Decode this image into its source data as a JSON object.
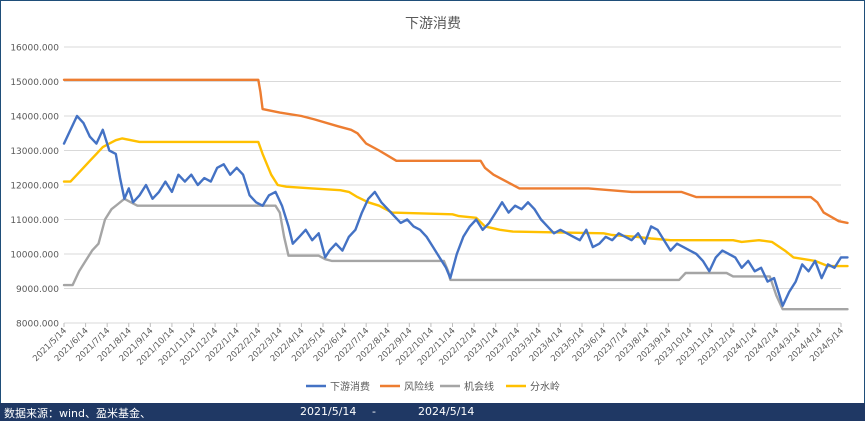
{
  "chart_data": {
    "type": "line",
    "title": "下游消费",
    "ylim": [
      8000,
      16000
    ],
    "yticks": [
      "8000.000",
      "9000.000",
      "10000.000",
      "11000.000",
      "12000.000",
      "13000.000",
      "14000.000",
      "15000.000",
      "16000.000"
    ],
    "xticks": [
      "2021/5/14",
      "2021/6/14",
      "2021/7/14",
      "2021/8/14",
      "2021/9/14",
      "2021/10/14",
      "2021/11/14",
      "2021/12/14",
      "2022/1/14",
      "2022/2/14",
      "2022/3/14",
      "2022/4/14",
      "2022/5/14",
      "2022/6/14",
      "2022/7/14",
      "2022/8/14",
      "2022/9/14",
      "2022/10/14",
      "2022/11/14",
      "2022/12/14",
      "2023/1/14",
      "2023/2/14",
      "2023/3/14",
      "2023/4/14",
      "2023/5/14",
      "2023/6/14",
      "2023/7/14",
      "2023/8/14",
      "2023/9/14",
      "2023/10/14",
      "2023/11/14",
      "2023/12/14",
      "2024/1/14",
      "2024/2/14",
      "2024/3/14",
      "2024/4/14",
      "2024/5/14"
    ],
    "grid": true,
    "legend_position": "bottom",
    "series": [
      {
        "name": "下游消费",
        "color": "#4472c4",
        "points": [
          [
            0,
            13200
          ],
          [
            0.3,
            13600
          ],
          [
            0.6,
            14000
          ],
          [
            0.9,
            13800
          ],
          [
            1.2,
            13400
          ],
          [
            1.5,
            13200
          ],
          [
            1.8,
            13600
          ],
          [
            2.1,
            13000
          ],
          [
            2.4,
            12900
          ],
          [
            2.6,
            12200
          ],
          [
            2.8,
            11600
          ],
          [
            3.0,
            11900
          ],
          [
            3.2,
            11500
          ],
          [
            3.5,
            11700
          ],
          [
            3.8,
            12000
          ],
          [
            4.1,
            11600
          ],
          [
            4.4,
            11800
          ],
          [
            4.7,
            12100
          ],
          [
            5.0,
            11800
          ],
          [
            5.3,
            12300
          ],
          [
            5.6,
            12100
          ],
          [
            5.9,
            12300
          ],
          [
            6.2,
            12000
          ],
          [
            6.5,
            12200
          ],
          [
            6.8,
            12100
          ],
          [
            7.1,
            12500
          ],
          [
            7.4,
            12600
          ],
          [
            7.7,
            12300
          ],
          [
            8.0,
            12500
          ],
          [
            8.3,
            12300
          ],
          [
            8.6,
            11700
          ],
          [
            8.9,
            11500
          ],
          [
            9.2,
            11400
          ],
          [
            9.5,
            11700
          ],
          [
            9.8,
            11800
          ],
          [
            10.1,
            11400
          ],
          [
            10.4,
            10800
          ],
          [
            10.6,
            10300
          ],
          [
            10.9,
            10500
          ],
          [
            11.2,
            10700
          ],
          [
            11.5,
            10400
          ],
          [
            11.8,
            10600
          ],
          [
            12.1,
            9900
          ],
          [
            12.3,
            10100
          ],
          [
            12.6,
            10300
          ],
          [
            12.9,
            10100
          ],
          [
            13.2,
            10500
          ],
          [
            13.5,
            10700
          ],
          [
            13.8,
            11200
          ],
          [
            14.1,
            11600
          ],
          [
            14.4,
            11800
          ],
          [
            14.7,
            11500
          ],
          [
            15.0,
            11300
          ],
          [
            15.3,
            11100
          ],
          [
            15.6,
            10900
          ],
          [
            15.9,
            11000
          ],
          [
            16.2,
            10800
          ],
          [
            16.5,
            10700
          ],
          [
            16.8,
            10500
          ],
          [
            17.1,
            10200
          ],
          [
            17.4,
            9900
          ],
          [
            17.7,
            9600
          ],
          [
            17.9,
            9300
          ],
          [
            18.2,
            10000
          ],
          [
            18.5,
            10500
          ],
          [
            18.8,
            10800
          ],
          [
            19.1,
            11000
          ],
          [
            19.4,
            10700
          ],
          [
            19.7,
            10900
          ],
          [
            20.0,
            11200
          ],
          [
            20.3,
            11500
          ],
          [
            20.6,
            11200
          ],
          [
            20.9,
            11400
          ],
          [
            21.2,
            11300
          ],
          [
            21.5,
            11500
          ],
          [
            21.8,
            11300
          ],
          [
            22.1,
            11000
          ],
          [
            22.4,
            10800
          ],
          [
            22.7,
            10600
          ],
          [
            23.0,
            10700
          ],
          [
            23.3,
            10600
          ],
          [
            23.6,
            10500
          ],
          [
            23.9,
            10400
          ],
          [
            24.2,
            10700
          ],
          [
            24.5,
            10200
          ],
          [
            24.8,
            10300
          ],
          [
            25.1,
            10500
          ],
          [
            25.4,
            10400
          ],
          [
            25.7,
            10600
          ],
          [
            26.0,
            10500
          ],
          [
            26.3,
            10400
          ],
          [
            26.6,
            10600
          ],
          [
            26.9,
            10300
          ],
          [
            27.2,
            10800
          ],
          [
            27.5,
            10700
          ],
          [
            27.8,
            10400
          ],
          [
            28.1,
            10100
          ],
          [
            28.4,
            10300
          ],
          [
            28.7,
            10200
          ],
          [
            29.0,
            10100
          ],
          [
            29.3,
            10000
          ],
          [
            29.6,
            9800
          ],
          [
            29.9,
            9500
          ],
          [
            30.2,
            9900
          ],
          [
            30.5,
            10100
          ],
          [
            30.8,
            10000
          ],
          [
            31.1,
            9900
          ],
          [
            31.4,
            9600
          ],
          [
            31.7,
            9800
          ],
          [
            32.0,
            9500
          ],
          [
            32.3,
            9600
          ],
          [
            32.6,
            9200
          ],
          [
            32.9,
            9300
          ],
          [
            33.1,
            8900
          ],
          [
            33.3,
            8500
          ],
          [
            33.6,
            8900
          ],
          [
            33.9,
            9200
          ],
          [
            34.2,
            9700
          ],
          [
            34.5,
            9500
          ],
          [
            34.8,
            9800
          ],
          [
            35.1,
            9300
          ],
          [
            35.4,
            9700
          ],
          [
            35.7,
            9600
          ],
          [
            36.0,
            9900
          ],
          [
            36.3,
            9900
          ]
        ]
      },
      {
        "name": "风险线",
        "color": "#ed7d31",
        "points": [
          [
            0,
            15050
          ],
          [
            9.0,
            15050
          ],
          [
            9.1,
            14700
          ],
          [
            9.2,
            14200
          ],
          [
            10.0,
            14100
          ],
          [
            11.0,
            14000
          ],
          [
            11.6,
            13900
          ],
          [
            12.7,
            13700
          ],
          [
            13.3,
            13600
          ],
          [
            13.6,
            13500
          ],
          [
            14.0,
            13200
          ],
          [
            14.6,
            13000
          ],
          [
            15.4,
            12700
          ],
          [
            19.3,
            12700
          ],
          [
            19.5,
            12500
          ],
          [
            19.9,
            12300
          ],
          [
            20.5,
            12100
          ],
          [
            21.1,
            11900
          ],
          [
            24.3,
            11900
          ],
          [
            26.3,
            11800
          ],
          [
            28.6,
            11800
          ],
          [
            29.3,
            11650
          ],
          [
            34.6,
            11650
          ],
          [
            34.9,
            11500
          ],
          [
            35.2,
            11200
          ],
          [
            35.9,
            10950
          ],
          [
            36.3,
            10900
          ]
        ]
      },
      {
        "name": "机会线",
        "color": "#a5a5a5",
        "points": [
          [
            0,
            9100
          ],
          [
            0.4,
            9100
          ],
          [
            0.7,
            9500
          ],
          [
            1.0,
            9800
          ],
          [
            1.3,
            10100
          ],
          [
            1.6,
            10300
          ],
          [
            1.9,
            11000
          ],
          [
            2.2,
            11300
          ],
          [
            2.5,
            11450
          ],
          [
            2.8,
            11600
          ],
          [
            3.1,
            11500
          ],
          [
            3.4,
            11400
          ],
          [
            9.8,
            11400
          ],
          [
            10.0,
            11200
          ],
          [
            10.2,
            10500
          ],
          [
            10.4,
            9950
          ],
          [
            11.8,
            9950
          ],
          [
            12.1,
            9850
          ],
          [
            12.4,
            9800
          ],
          [
            17.6,
            9800
          ],
          [
            17.8,
            9500
          ],
          [
            17.9,
            9250
          ],
          [
            28.5,
            9250
          ],
          [
            28.8,
            9450
          ],
          [
            30.7,
            9450
          ],
          [
            31.0,
            9350
          ],
          [
            32.7,
            9350
          ],
          [
            33.0,
            8800
          ],
          [
            33.3,
            8400
          ],
          [
            36.3,
            8400
          ]
        ]
      },
      {
        "name": "分水岭",
        "color": "#ffc000",
        "points": [
          [
            0,
            12100
          ],
          [
            0.3,
            12100
          ],
          [
            0.6,
            12300
          ],
          [
            0.9,
            12500
          ],
          [
            1.2,
            12700
          ],
          [
            1.5,
            12900
          ],
          [
            1.8,
            13100
          ],
          [
            2.1,
            13200
          ],
          [
            2.4,
            13300
          ],
          [
            2.7,
            13350
          ],
          [
            3.1,
            13300
          ],
          [
            3.5,
            13250
          ],
          [
            9.0,
            13250
          ],
          [
            9.2,
            12900
          ],
          [
            9.6,
            12300
          ],
          [
            9.9,
            12000
          ],
          [
            10.3,
            11950
          ],
          [
            11.5,
            11900
          ],
          [
            12.8,
            11850
          ],
          [
            13.2,
            11800
          ],
          [
            13.6,
            11650
          ],
          [
            14.1,
            11500
          ],
          [
            14.6,
            11400
          ],
          [
            15.2,
            11200
          ],
          [
            18.0,
            11150
          ],
          [
            18.3,
            11100
          ],
          [
            19.1,
            11050
          ],
          [
            19.5,
            10800
          ],
          [
            20.2,
            10700
          ],
          [
            20.8,
            10650
          ],
          [
            25.0,
            10600
          ],
          [
            25.4,
            10550
          ],
          [
            26.5,
            10500
          ],
          [
            27.2,
            10450
          ],
          [
            28.1,
            10400
          ],
          [
            31.0,
            10400
          ],
          [
            31.4,
            10350
          ],
          [
            32.2,
            10400
          ],
          [
            32.8,
            10350
          ],
          [
            33.4,
            10100
          ],
          [
            33.8,
            9900
          ],
          [
            34.8,
            9800
          ],
          [
            35.4,
            9650
          ],
          [
            36.3,
            9650
          ]
        ]
      }
    ]
  },
  "footer": {
    "source": "数据来源：wind、盈米基金、",
    "start_date": "2021/5/14",
    "separator": "-",
    "end_date": "2024/5/14"
  }
}
